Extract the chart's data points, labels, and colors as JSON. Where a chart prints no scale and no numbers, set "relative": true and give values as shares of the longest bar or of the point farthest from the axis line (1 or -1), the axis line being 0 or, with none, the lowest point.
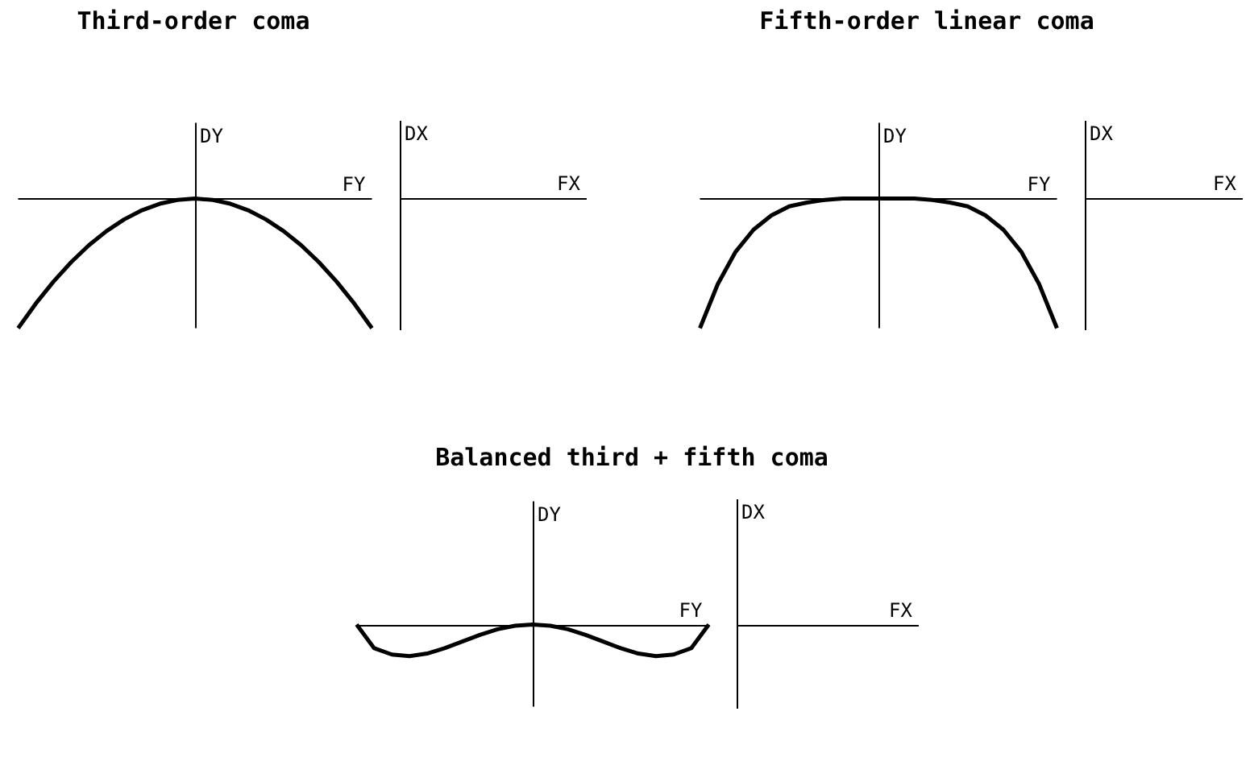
{
  "chart_data": [
    {
      "type": "line",
      "relative": true,
      "title": "Third-order coma",
      "xlabel": "FY",
      "ylabel": "DY",
      "categories": [
        null,
        null,
        null,
        null,
        null,
        null,
        null,
        null,
        null,
        null,
        null,
        null,
        null,
        null,
        null,
        null,
        null,
        null,
        null,
        null,
        null
      ],
      "series": [
        {
          "color": "#000000",
          "values": [
            -1,
            -0.81,
            -0.64,
            -0.49,
            -0.36,
            -0.25,
            -0.16,
            -0.09,
            -0.04,
            -0.01,
            0,
            -0.01,
            -0.04,
            -0.09,
            -0.16,
            -0.25,
            -0.36,
            -0.49,
            -0.64,
            -0.81,
            -1
          ]
        }
      ]
    },
    {
      "type": "other",
      "xlabel": "FX",
      "ylabel": "DX"
    },
    {
      "type": "line",
      "relative": true,
      "title": "Fifth-order linear coma",
      "xlabel": "FY",
      "ylabel": "DY",
      "categories": [
        null,
        null,
        null,
        null,
        null,
        null,
        null,
        null,
        null,
        null,
        null,
        null,
        null,
        null,
        null,
        null,
        null,
        null,
        null,
        null,
        null
      ],
      "series": [
        {
          "color": "#000000",
          "values": [
            -1,
            -0.66,
            -0.41,
            -0.24,
            -0.13,
            -0.06,
            -0.03,
            -0.01,
            0,
            0,
            0,
            0,
            0,
            -0.01,
            -0.03,
            -0.06,
            -0.13,
            -0.24,
            -0.41,
            -0.66,
            -1
          ]
        }
      ]
    },
    {
      "type": "other",
      "xlabel": "FX",
      "ylabel": "DX"
    },
    {
      "type": "line",
      "relative": true,
      "title": "Balanced third + fifth coma",
      "xlabel": "FY",
      "ylabel": "DY",
      "categories": [
        null,
        null,
        null,
        null,
        null,
        null,
        null,
        null,
        null,
        null,
        null,
        null,
        null,
        null,
        null,
        null,
        null,
        null,
        null,
        null,
        null
      ],
      "series": [
        {
          "color": "#000000",
          "values": [
            0,
            -0.75,
            -0.95,
            -1,
            -0.92,
            -0.75,
            -0.54,
            -0.33,
            -0.15,
            -0.04,
            0,
            -0.04,
            -0.15,
            -0.33,
            -0.54,
            -0.75,
            -0.92,
            -1,
            -0.95,
            -0.75,
            0
          ]
        }
      ]
    },
    {
      "type": "other",
      "xlabel": "FX",
      "ylabel": "DX"
    }
  ]
}
